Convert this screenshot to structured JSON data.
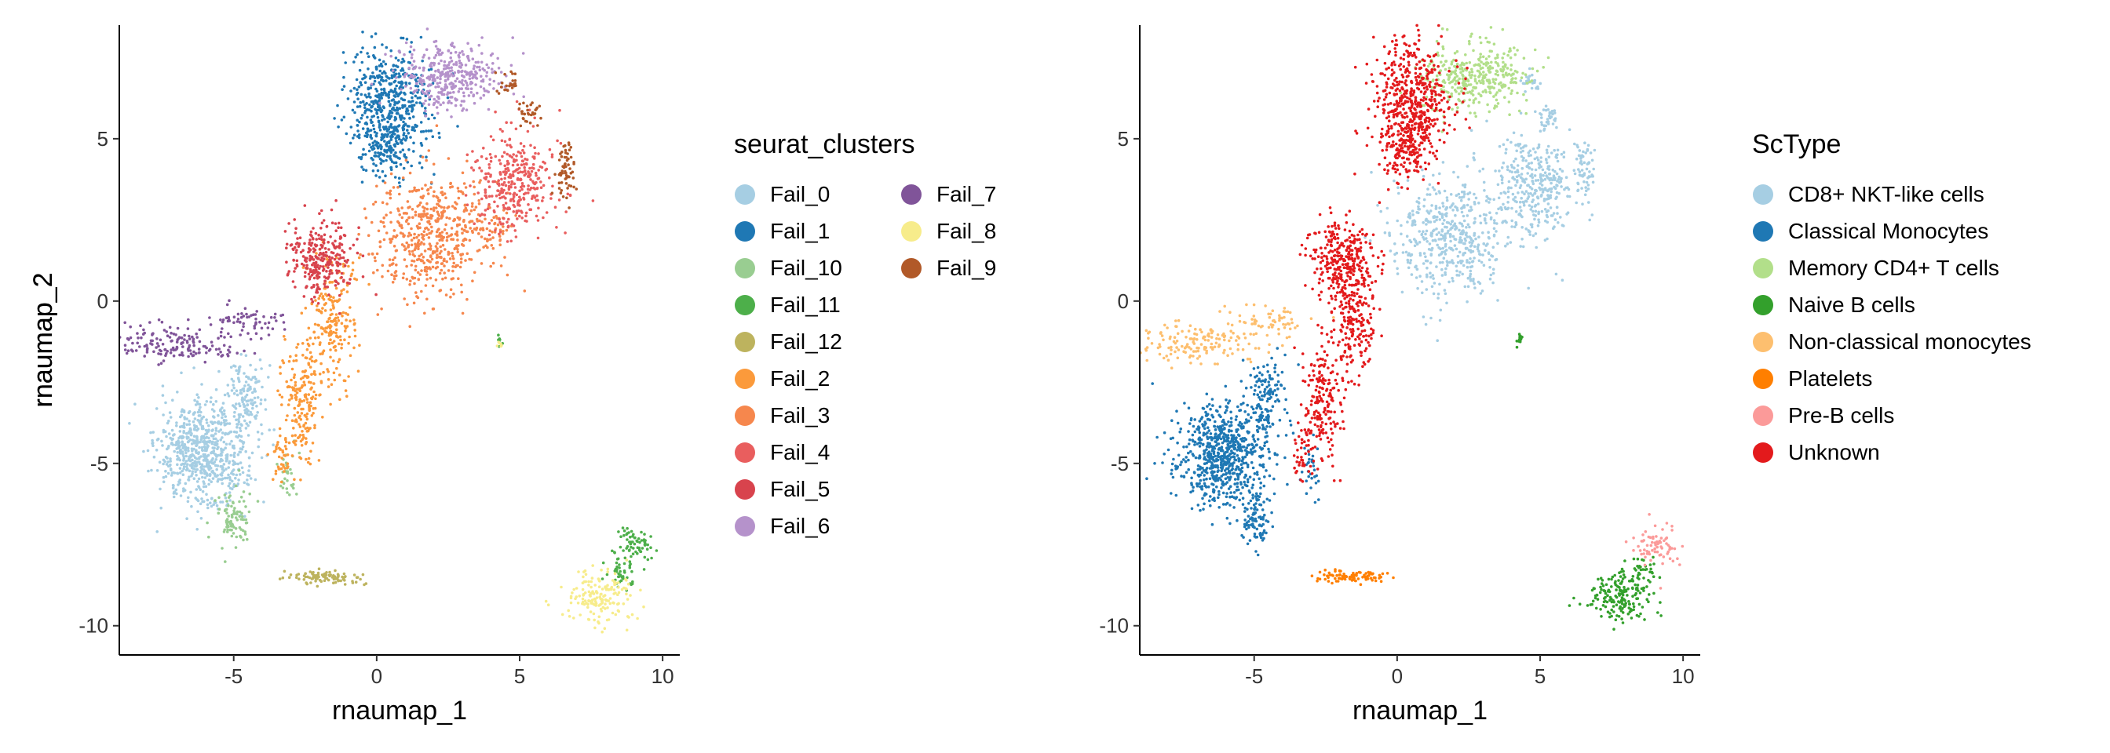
{
  "chart_data": [
    {
      "type": "scatter",
      "panel": "left",
      "xlabel": "rnaumap_1",
      "ylabel": "rnaumap_2",
      "xlim": [
        -9,
        10.6
      ],
      "ylim": [
        -10.9,
        8.5
      ],
      "xticks": [
        -5,
        0,
        5,
        10
      ],
      "yticks": [
        -10,
        -5,
        0,
        5
      ],
      "grid": false,
      "legend": {
        "title": "seurat_clusters",
        "placement": "right",
        "columns": 2
      },
      "series": [
        {
          "name": "Fail_0",
          "color": "#A6CEE3",
          "clusters": [
            {
              "center": [
                -6.1,
                -4.7
              ],
              "spread": [
                0.8,
                0.8
              ],
              "n": 700
            },
            {
              "center": [
                -4.6,
                -3.0
              ],
              "spread": [
                0.35,
                0.6
              ],
              "n": 130
            }
          ]
        },
        {
          "name": "Fail_1",
          "color": "#1F78B4",
          "clusters": [
            {
              "center": [
                0.5,
                6.2
              ],
              "spread": [
                0.7,
                0.9
              ],
              "n": 520
            },
            {
              "center": [
                0.3,
                4.6
              ],
              "spread": [
                0.4,
                0.5
              ],
              "n": 120
            }
          ]
        },
        {
          "name": "Fail_10",
          "color": "#99CD91",
          "clusters": [
            {
              "center": [
                -5.0,
                -6.7
              ],
              "spread": [
                0.3,
                0.5
              ],
              "n": 90
            },
            {
              "center": [
                -3.1,
                -5.3
              ],
              "spread": [
                0.2,
                0.5
              ],
              "n": 30
            }
          ]
        },
        {
          "name": "Fail_11",
          "color": "#4DAF4A",
          "clusters": [
            {
              "center": [
                9.0,
                -7.5
              ],
              "spread": [
                0.35,
                0.3
              ],
              "n": 70
            },
            {
              "center": [
                8.5,
                -8.4
              ],
              "spread": [
                0.3,
                0.3
              ],
              "n": 40
            },
            {
              "center": [
                4.3,
                -1.2
              ],
              "spread": [
                0.05,
                0.1
              ],
              "n": 8
            }
          ]
        },
        {
          "name": "Fail_12",
          "color": "#BDB35E",
          "clusters": [
            {
              "center": [
                -1.6,
                -8.5
              ],
              "spread": [
                0.6,
                0.1
              ],
              "n": 90
            }
          ]
        },
        {
          "name": "Fail_2",
          "color": "#FB9A3B",
          "clusters": [
            {
              "center": [
                -1.6,
                -0.5
              ],
              "spread": [
                0.4,
                1.0
              ],
              "n": 220
            },
            {
              "center": [
                -2.6,
                -3.2
              ],
              "spread": [
                0.35,
                0.9
              ],
              "n": 180
            },
            {
              "center": [
                -3.3,
                -4.8
              ],
              "spread": [
                0.2,
                0.4
              ],
              "n": 40
            }
          ]
        },
        {
          "name": "Fail_3",
          "color": "#F6874D",
          "clusters": [
            {
              "center": [
                1.8,
                2.0
              ],
              "spread": [
                1.0,
                0.9
              ],
              "n": 500
            },
            {
              "center": [
                3.7,
                2.4
              ],
              "spread": [
                0.5,
                0.5
              ],
              "n": 80
            }
          ]
        },
        {
          "name": "Fail_4",
          "color": "#E95E5E",
          "clusters": [
            {
              "center": [
                4.8,
                3.6
              ],
              "spread": [
                0.7,
                0.8
              ],
              "n": 340
            }
          ]
        },
        {
          "name": "Fail_5",
          "color": "#D8434D",
          "clusters": [
            {
              "center": [
                -1.9,
                1.3
              ],
              "spread": [
                0.55,
                0.6
              ],
              "n": 270
            }
          ]
        },
        {
          "name": "Fail_6",
          "color": "#B592CB",
          "clusters": [
            {
              "center": [
                2.6,
                6.9
              ],
              "spread": [
                0.9,
                0.5
              ],
              "n": 360
            }
          ]
        },
        {
          "name": "Fail_7",
          "color": "#805499",
          "clusters": [
            {
              "center": [
                -7.0,
                -1.3
              ],
              "spread": [
                1.1,
                0.3
              ],
              "n": 160
            },
            {
              "center": [
                -4.4,
                -0.6
              ],
              "spread": [
                0.7,
                0.25
              ],
              "n": 60
            }
          ]
        },
        {
          "name": "Fail_8",
          "color": "#F7EC8B",
          "clusters": [
            {
              "center": [
                7.8,
                -9.1
              ],
              "spread": [
                0.6,
                0.4
              ],
              "n": 170
            },
            {
              "center": [
                4.3,
                -1.3
              ],
              "spread": [
                0.05,
                0.1
              ],
              "n": 6
            }
          ]
        },
        {
          "name": "Fail_9",
          "color": "#B15928",
          "clusters": [
            {
              "center": [
                6.6,
                4.1
              ],
              "spread": [
                0.2,
                0.5
              ],
              "n": 60
            },
            {
              "center": [
                5.3,
                5.7
              ],
              "spread": [
                0.2,
                0.2
              ],
              "n": 30
            },
            {
              "center": [
                4.6,
                6.7
              ],
              "spread": [
                0.2,
                0.2
              ],
              "n": 25
            }
          ]
        }
      ]
    },
    {
      "type": "scatter",
      "panel": "right",
      "xlabel": "rnaumap_1",
      "ylabel": "rnaumap_2",
      "xlim": [
        -9,
        10.6
      ],
      "ylim": [
        -10.9,
        8.5
      ],
      "xticks": [
        -5,
        0,
        5,
        10
      ],
      "yticks": [
        -10,
        -5,
        0,
        5
      ],
      "grid": false,
      "legend": {
        "title": "ScType",
        "placement": "right",
        "columns": 1
      },
      "series": [
        {
          "name": "CD8+ NKT-like cells",
          "color": "#A6CEE3",
          "clusters": [
            {
              "center": [
                1.8,
                2.0
              ],
              "spread": [
                1.0,
                0.9
              ],
              "n": 500
            },
            {
              "center": [
                4.8,
                3.6
              ],
              "spread": [
                0.7,
                0.8
              ],
              "n": 340
            },
            {
              "center": [
                6.6,
                4.1
              ],
              "spread": [
                0.2,
                0.5
              ],
              "n": 60
            },
            {
              "center": [
                5.3,
                5.7
              ],
              "spread": [
                0.2,
                0.2
              ],
              "n": 30
            },
            {
              "center": [
                4.6,
                6.7
              ],
              "spread": [
                0.2,
                0.2
              ],
              "n": 25
            }
          ]
        },
        {
          "name": "Classical Monocytes",
          "color": "#1F78B4",
          "clusters": [
            {
              "center": [
                -6.1,
                -4.7
              ],
              "spread": [
                0.8,
                0.8
              ],
              "n": 700
            },
            {
              "center": [
                -4.6,
                -3.0
              ],
              "spread": [
                0.35,
                0.6
              ],
              "n": 130
            },
            {
              "center": [
                -5.0,
                -6.7
              ],
              "spread": [
                0.3,
                0.5
              ],
              "n": 90
            },
            {
              "center": [
                -3.1,
                -5.3
              ],
              "spread": [
                0.2,
                0.5
              ],
              "n": 30
            }
          ]
        },
        {
          "name": "Memory CD4+ T cells",
          "color": "#B2DF8A",
          "clusters": [
            {
              "center": [
                2.6,
                6.9
              ],
              "spread": [
                0.9,
                0.5
              ],
              "n": 360
            }
          ]
        },
        {
          "name": "Naive B cells",
          "color": "#33A02C",
          "clusters": [
            {
              "center": [
                7.8,
                -9.1
              ],
              "spread": [
                0.6,
                0.4
              ],
              "n": 170
            },
            {
              "center": [
                8.5,
                -8.4
              ],
              "spread": [
                0.3,
                0.3
              ],
              "n": 40
            },
            {
              "center": [
                4.3,
                -1.2
              ],
              "spread": [
                0.05,
                0.1
              ],
              "n": 14
            }
          ]
        },
        {
          "name": "Non-classical monocytes",
          "color": "#FDBF6F",
          "clusters": [
            {
              "center": [
                -7.0,
                -1.3
              ],
              "spread": [
                1.1,
                0.3
              ],
              "n": 160
            },
            {
              "center": [
                -4.4,
                -0.6
              ],
              "spread": [
                0.7,
                0.25
              ],
              "n": 60
            }
          ]
        },
        {
          "name": "Platelets",
          "color": "#FF7F00",
          "clusters": [
            {
              "center": [
                -1.6,
                -8.5
              ],
              "spread": [
                0.6,
                0.1
              ],
              "n": 90
            }
          ]
        },
        {
          "name": "Pre-B cells",
          "color": "#FB9A99",
          "clusters": [
            {
              "center": [
                9.0,
                -7.5
              ],
              "spread": [
                0.35,
                0.3
              ],
              "n": 70
            }
          ]
        },
        {
          "name": "Unknown",
          "color": "#E31A1C",
          "clusters": [
            {
              "center": [
                0.5,
                6.2
              ],
              "spread": [
                0.7,
                0.9
              ],
              "n": 520
            },
            {
              "center": [
                0.3,
                4.6
              ],
              "spread": [
                0.4,
                0.5
              ],
              "n": 120
            },
            {
              "center": [
                -1.9,
                1.3
              ],
              "spread": [
                0.55,
                0.6
              ],
              "n": 270
            },
            {
              "center": [
                -1.6,
                -0.5
              ],
              "spread": [
                0.4,
                1.0
              ],
              "n": 220
            },
            {
              "center": [
                -2.6,
                -3.2
              ],
              "spread": [
                0.35,
                0.9
              ],
              "n": 180
            },
            {
              "center": [
                -3.3,
                -4.8
              ],
              "spread": [
                0.2,
                0.4
              ],
              "n": 40
            }
          ]
        }
      ]
    }
  ]
}
